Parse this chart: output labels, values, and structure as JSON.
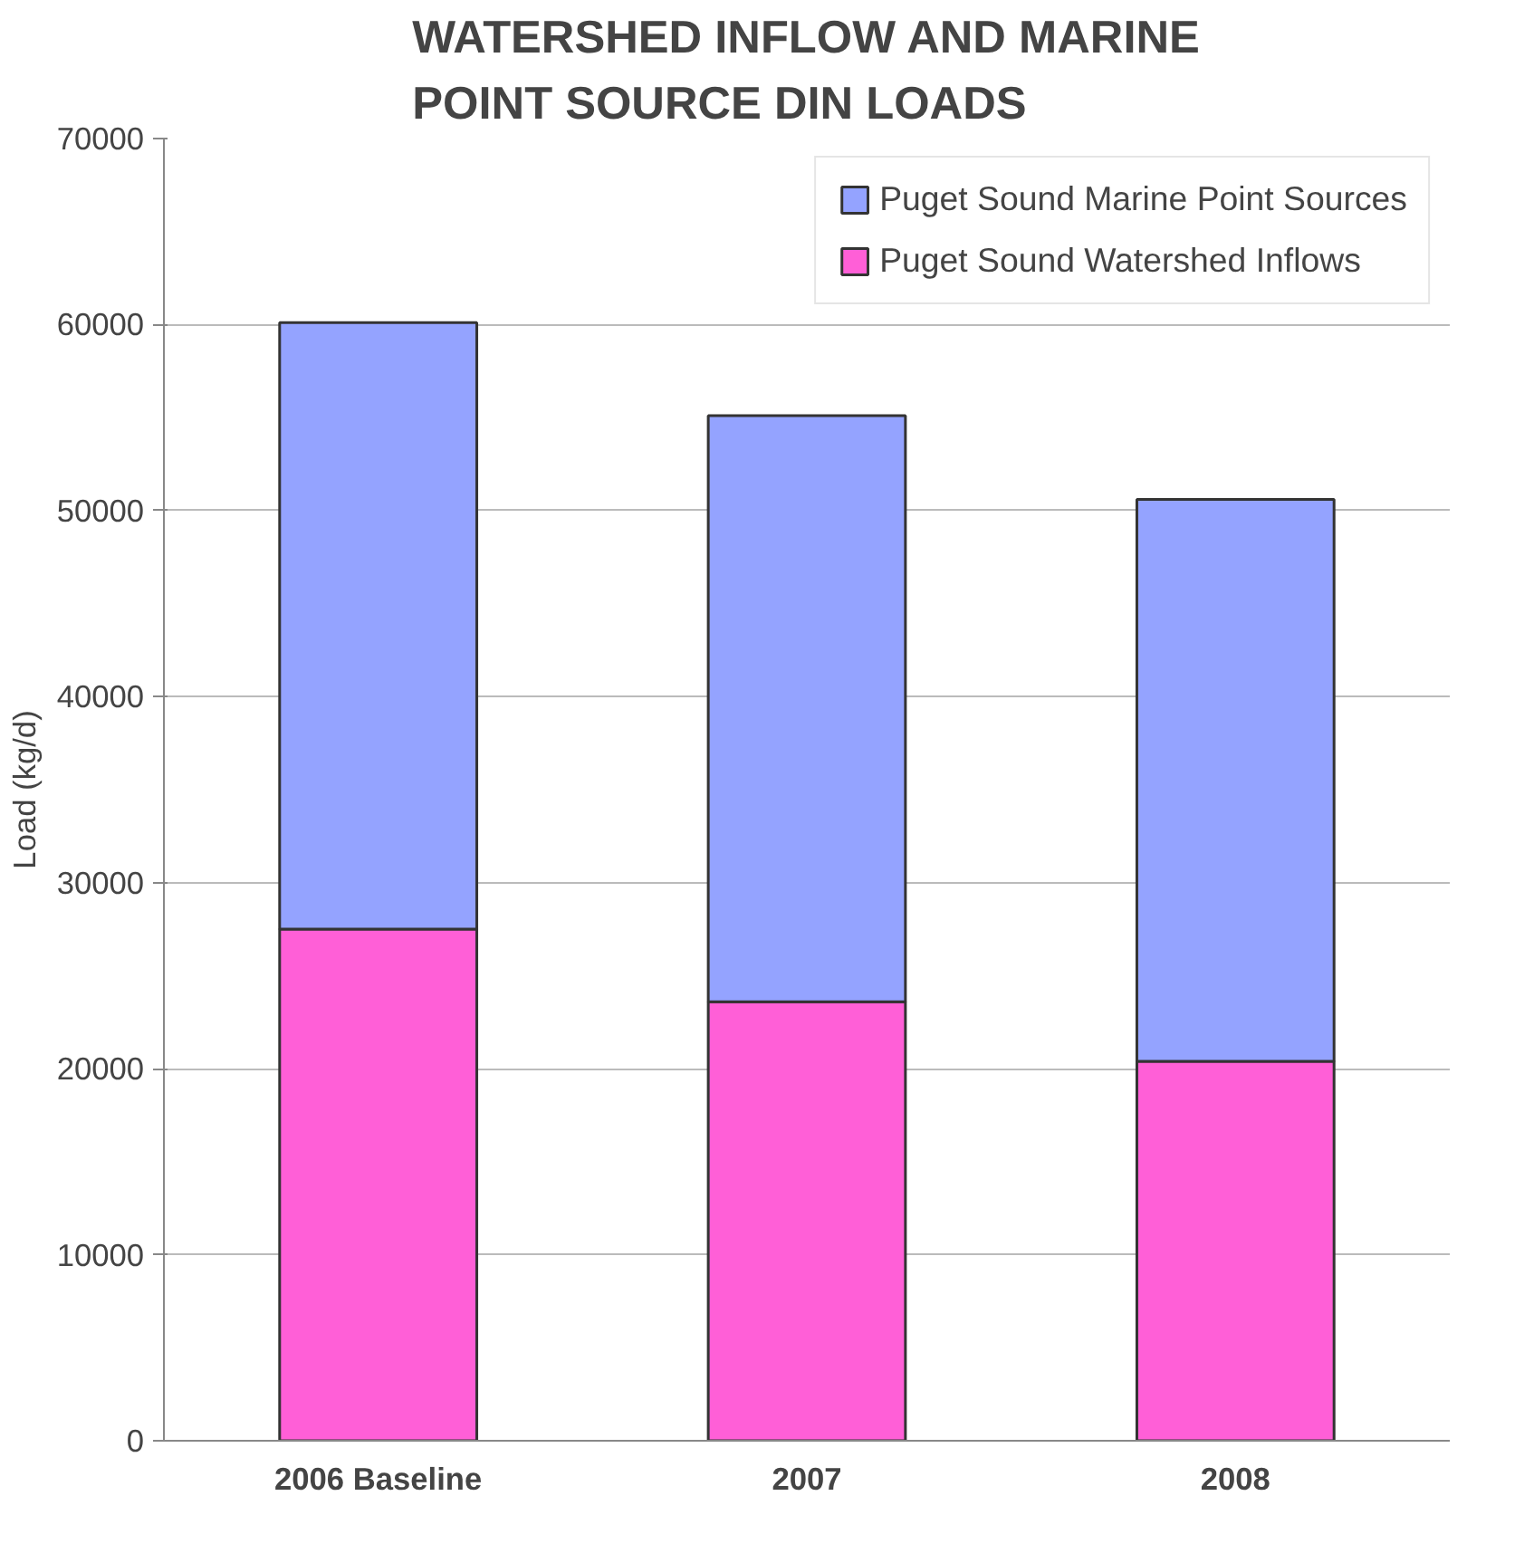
{
  "chart_data": {
    "type": "bar",
    "title": "WATERSHED INFLOW AND MARINE POINT SOURCE DIN LOADS",
    "ylabel": "Load (kg/d)",
    "categories": [
      "2006 Baseline",
      "2007",
      "2008"
    ],
    "stacked": true,
    "series": [
      {
        "name": "Puget Sound Watershed Inflows",
        "color": "#ff5fd7",
        "values": [
          27500,
          23600,
          20400
        ]
      },
      {
        "name": "Puget Sound Marine Point Sources",
        "color": "#94a3ff",
        "values": [
          32600,
          31500,
          30200
        ]
      }
    ],
    "ylim": [
      0,
      70000
    ],
    "yticks": [
      0,
      10000,
      20000,
      30000,
      40000,
      50000,
      60000,
      70000
    ],
    "grid": "y",
    "legend": "top right"
  }
}
